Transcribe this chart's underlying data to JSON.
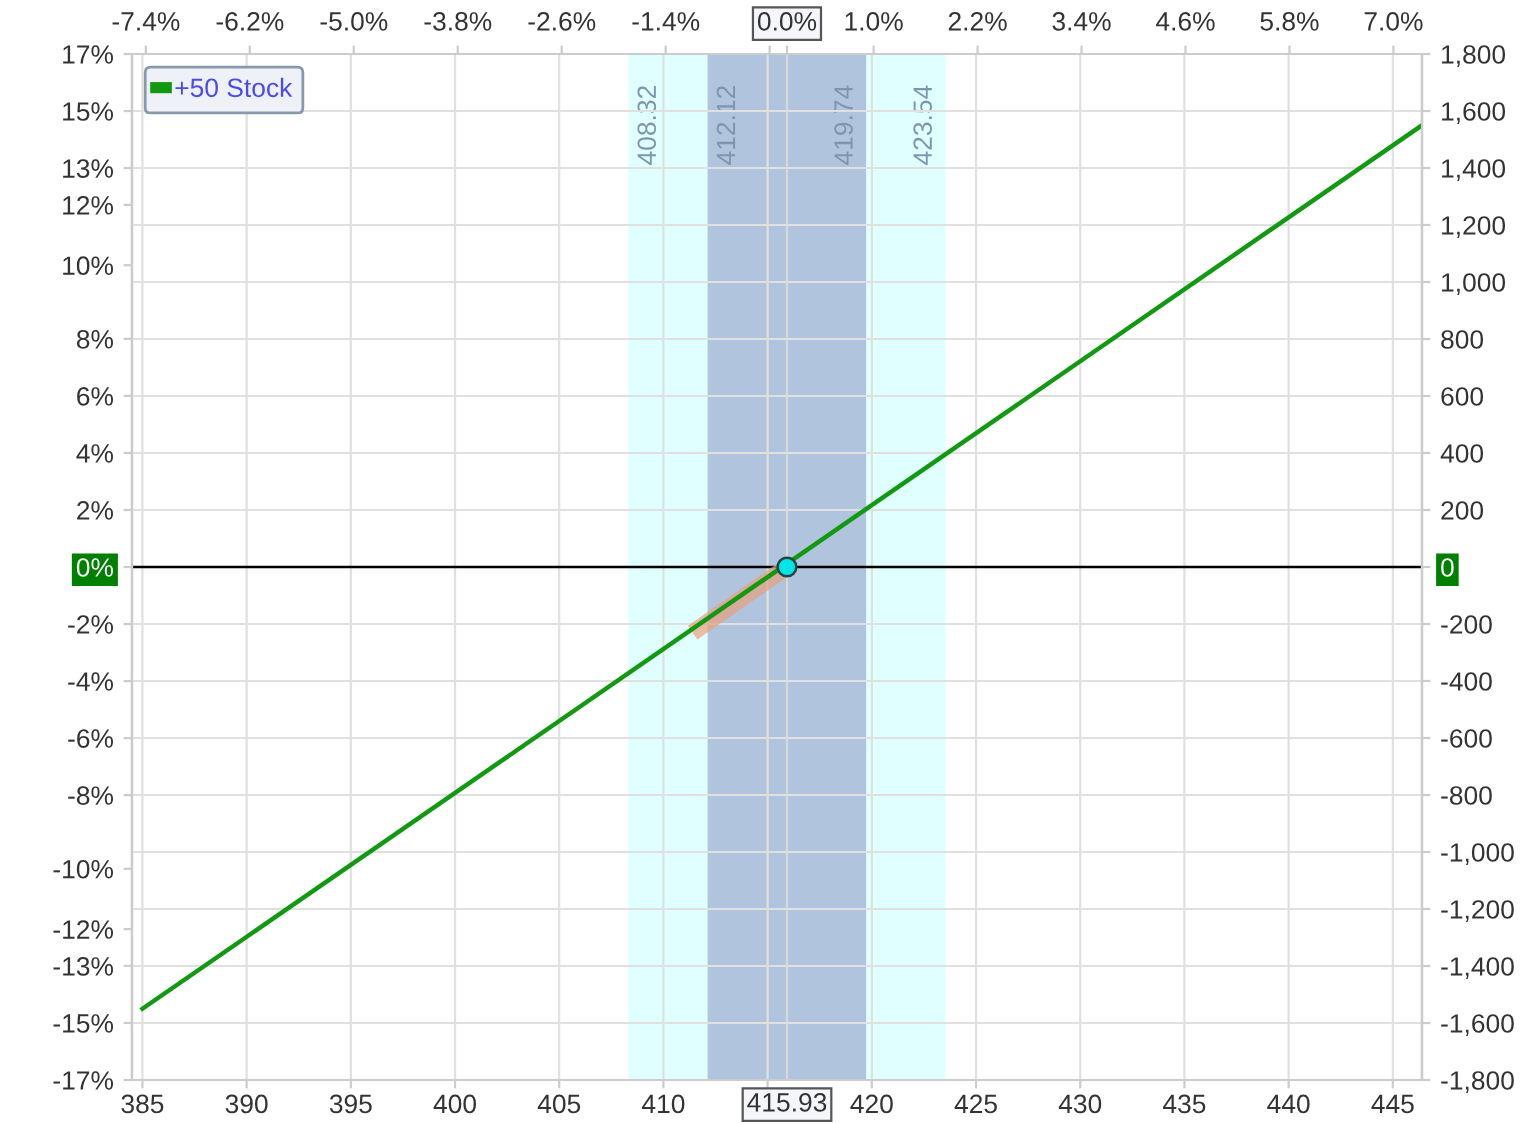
{
  "chart_data": {
    "type": "line",
    "series": [
      {
        "color": "#e8a07c",
        "x": [
          411.4,
          415.93
        ],
        "values": [
          -230,
          0
        ],
        "axis": "y2"
      },
      {
        "name": "+50 Stock",
        "color": "#119911",
        "x": [
          385,
          446.4
        ],
        "values": [
          -1550,
          1550
        ],
        "axis": "y2"
      },
      {
        "type": "scatter",
        "color": "#00e5e5",
        "x": [
          415.93
        ],
        "values": [
          0
        ],
        "axis": "y2",
        "marker": "circle"
      }
    ],
    "xlim": [
      384.5,
      446.4
    ],
    "xticks": [
      385,
      390,
      395,
      400,
      405,
      410,
      {
        "value": 415,
        "label": null
      },
      420,
      425,
      430,
      435,
      440,
      445
    ],
    "x2lim": [
      -7.56,
      7.33
    ],
    "x2ticks": [
      {
        "value": -7.4,
        "label": "-7.4%"
      },
      {
        "value": -6.2,
        "label": "-6.2%"
      },
      {
        "value": -5.0,
        "label": "-5.0%"
      },
      {
        "value": -3.8,
        "label": "-3.8%"
      },
      {
        "value": -2.6,
        "label": "-2.6%"
      },
      {
        "value": -1.4,
        "label": "-1.4%"
      },
      {
        "value": -0.2,
        "label": null
      },
      {
        "value": 0,
        "label": "0.0%"
      },
      {
        "value": 1.0,
        "label": "1.0%"
      },
      {
        "value": 2.2,
        "label": "2.2%"
      },
      {
        "value": 3.4,
        "label": "3.4%"
      },
      {
        "value": 4.6,
        "label": "4.6%"
      },
      {
        "value": 5.8,
        "label": "5.8%"
      },
      {
        "value": 7.0,
        "label": "7.0%"
      }
    ],
    "ylim": [
      -17,
      17
    ],
    "yticks": [
      {
        "value": 17,
        "label": "17%"
      },
      {
        "value": 15.11,
        "label": "15%"
      },
      {
        "value": 13.22,
        "label": "13%"
      },
      {
        "value": 12,
        "label": "12%"
      },
      {
        "value": 10,
        "label": "10%"
      },
      {
        "value": 7.56,
        "label": "8%"
      },
      {
        "value": 5.67,
        "label": "6%"
      },
      {
        "value": 3.78,
        "label": "4%"
      },
      {
        "value": 1.89,
        "label": "2%"
      },
      {
        "value": 0,
        "label": "0%"
      },
      {
        "value": -1.89,
        "label": "-2%"
      },
      {
        "value": -3.78,
        "label": "-4%"
      },
      {
        "value": -5.67,
        "label": "-6%"
      },
      {
        "value": -7.56,
        "label": "-8%"
      },
      {
        "value": -10,
        "label": "-10%"
      },
      {
        "value": -12,
        "label": "-12%"
      },
      {
        "value": -13.22,
        "label": "-13%"
      },
      {
        "value": -15.11,
        "label": "-15%"
      },
      {
        "value": -17,
        "label": "-17%"
      }
    ],
    "y2lim": [
      -1800,
      1800
    ],
    "y2ticks": [
      {
        "value": 1800,
        "label": "1,800"
      },
      {
        "value": 1600,
        "label": "1,600"
      },
      {
        "value": 1400,
        "label": "1,400"
      },
      {
        "value": 1200,
        "label": "1,200"
      },
      {
        "value": 1000,
        "label": "1,000"
      },
      800,
      600,
      400,
      200,
      0,
      -200,
      -400,
      -600,
      -800,
      {
        "value": -1000,
        "label": "-1,000"
      },
      {
        "value": -1200,
        "label": "-1,200"
      },
      {
        "value": -1400,
        "label": "-1,400"
      },
      {
        "value": -1600,
        "label": "-1,600"
      },
      {
        "value": -1800,
        "label": "-1,800"
      }
    ],
    "bands": [
      {
        "axis": "x",
        "from": 408.32,
        "to": 412.12,
        "color": "#e0ffff",
        "label": "408.32"
      },
      {
        "axis": "x",
        "from": 412.12,
        "to": 415.93,
        "color": "#b0c4de",
        "label": "412.12"
      },
      {
        "axis": "x",
        "from": 415.93,
        "to": 419.74,
        "color": "#b0c4de",
        "label": "419.74"
      },
      {
        "axis": "x",
        "from": 419.74,
        "to": 423.54,
        "color": "#e0ffff",
        "label": "423.54"
      }
    ],
    "ref_lines": [
      {
        "axis": "y",
        "value": 0,
        "color": "#000000"
      },
      {
        "axis": "x",
        "value": 415.93,
        "label": "415.93",
        "color": "#d8d8d8"
      }
    ],
    "grid": true,
    "legend": "top left"
  }
}
